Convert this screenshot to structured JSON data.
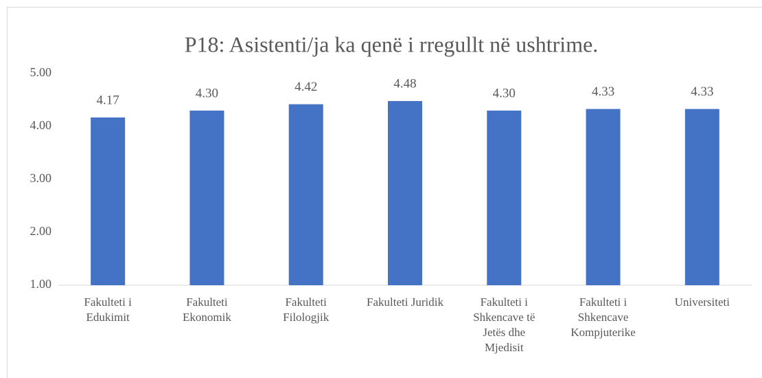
{
  "chart_data": {
    "type": "bar",
    "title": "P18: Asistenti/ja ka qenë i rregullt në ushtrime.",
    "categories": [
      "Fakulteti i Edukimit",
      "Fakulteti Ekonomik",
      "Fakulteti Filologjik",
      "Fakulteti Juridik",
      "Fakulteti i Shkencave të Jetës dhe Mjedisit",
      "Fakulteti i Shkencave Kompjuterike",
      "Universiteti"
    ],
    "values": [
      4.17,
      4.3,
      4.42,
      4.48,
      4.3,
      4.33,
      4.33
    ],
    "value_labels": [
      "4.17",
      "4.30",
      "4.42",
      "4.48",
      "4.30",
      "4.33",
      "4.33"
    ],
    "color": "#4472c4",
    "ylim": [
      1,
      5
    ],
    "yticks": [
      {
        "value": 1,
        "label": "1.00"
      },
      {
        "value": 2,
        "label": "2.00"
      },
      {
        "value": 3,
        "label": "3.00"
      },
      {
        "value": 4,
        "label": "4.00"
      },
      {
        "value": 5,
        "label": "5.00"
      }
    ],
    "grid": false
  }
}
